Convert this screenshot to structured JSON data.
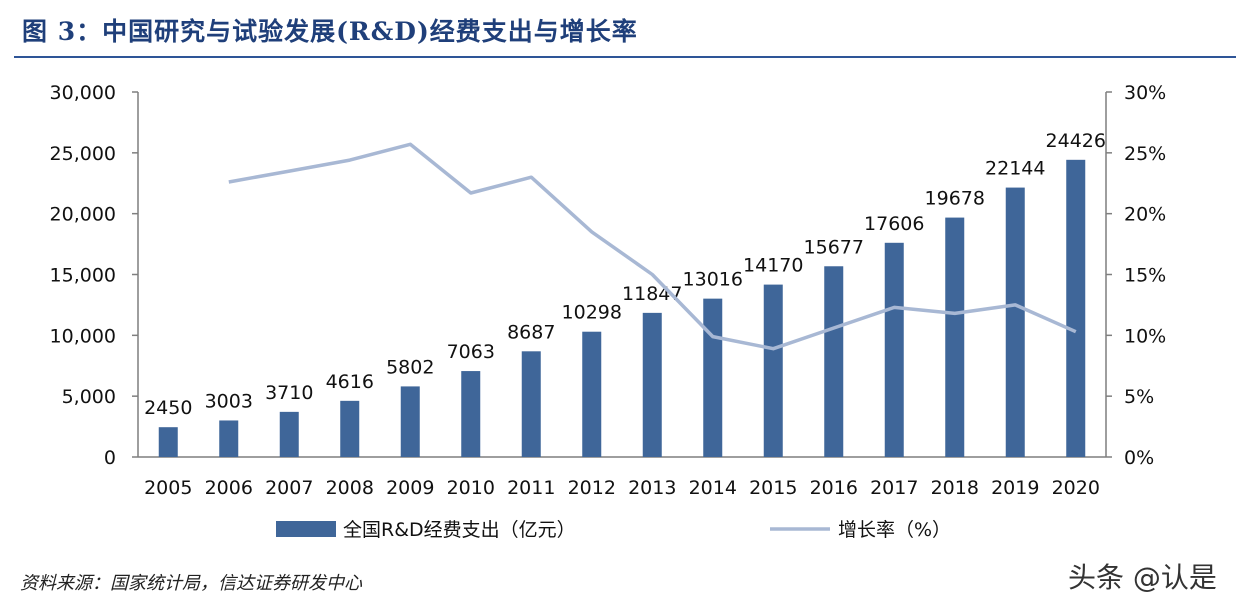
{
  "title": "图 3：中国研究与试验发展(R&D)经费支出与增长率",
  "source": "资料来源：国家统计局，信达证券研发中心",
  "watermark": "头条 @认是",
  "colors": {
    "bar": "#3f6699",
    "line": "#a8b8d4",
    "axis": "#7f7f7f",
    "title": "#1f3f7a"
  },
  "chart_data": {
    "type": "bar",
    "categories": [
      "2005",
      "2006",
      "2007",
      "2008",
      "2009",
      "2010",
      "2011",
      "2012",
      "2013",
      "2014",
      "2015",
      "2016",
      "2017",
      "2018",
      "2019",
      "2020"
    ],
    "series": [
      {
        "name": "全国R&D经费支出（亿元）",
        "type": "bar",
        "axis": "left",
        "values": [
          2450,
          3003,
          3710,
          4616,
          5802,
          7063,
          8687,
          10298,
          11847,
          13016,
          14170,
          15677,
          17606,
          19678,
          22144,
          24426
        ]
      },
      {
        "name": "增长率（%）",
        "type": "line",
        "axis": "right",
        "values": [
          null,
          22.6,
          23.5,
          24.4,
          25.7,
          21.7,
          23.0,
          18.5,
          15.0,
          9.9,
          8.9,
          10.6,
          12.3,
          11.8,
          12.5,
          10.3
        ]
      }
    ],
    "data_labels": [
      "2450",
      "3003",
      "3710",
      "4616",
      "5802",
      "7063",
      "8687",
      "10298",
      "11847",
      "13016",
      "14170",
      "15677",
      "17606",
      "19678",
      "22144",
      "24426"
    ],
    "ylim": [
      0,
      30000
    ],
    "y_ticks": [
      "0",
      "5,000",
      "10,000",
      "15,000",
      "20,000",
      "25,000",
      "30,000"
    ],
    "y2lim": [
      0,
      30
    ],
    "y2_ticks": [
      "0%",
      "5%",
      "10%",
      "15%",
      "20%",
      "25%",
      "30%"
    ],
    "legend_position": "bottom",
    "grid": false
  }
}
